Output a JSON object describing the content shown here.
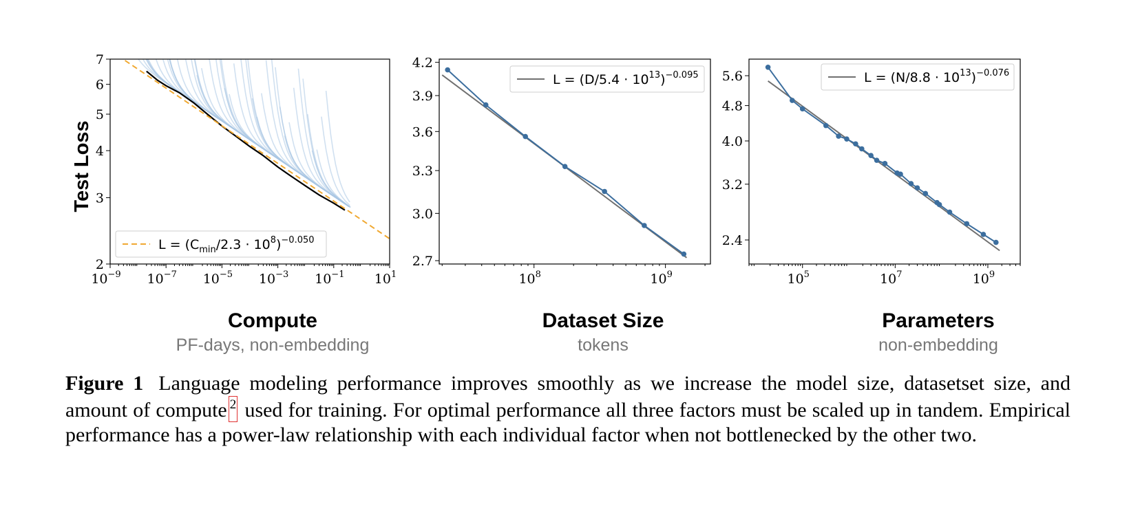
{
  "chart_data": [
    {
      "type": "line",
      "ylabel": "Test Loss",
      "xlabel": "Compute",
      "xsublabel": "PF-days, non-embedding",
      "xscale": "log",
      "yscale": "log",
      "xlim": [
        1e-09,
        10
      ],
      "ylim": [
        2,
        7
      ],
      "x_ticks": [
        {
          "base": "10",
          "exp": "−9",
          "value": 1e-09
        },
        {
          "base": "10",
          "exp": "−7",
          "value": 1e-07
        },
        {
          "base": "10",
          "exp": "−5",
          "value": 1e-05
        },
        {
          "base": "10",
          "exp": "−3",
          "value": 0.001
        },
        {
          "base": "10",
          "exp": "−1",
          "value": 0.1
        },
        {
          "base": "10",
          "exp": "1",
          "value": 10
        }
      ],
      "y_ticks": [
        2,
        3,
        4,
        5,
        6,
        7
      ],
      "y_tick_labels": [
        "2",
        "3",
        "4",
        "5",
        "6",
        "7"
      ],
      "legend": {
        "prefix": "L = (C",
        "subscript": "min",
        "middle": "/2.3 · 10",
        "exp1": "8",
        "close": ")",
        "exp2": "−0.050",
        "placement": "lower-left"
      },
      "fit": {
        "coef": 230000000.0,
        "exponent": -0.05,
        "color": "#f0a830"
      },
      "frontier_color": "#000000",
      "curves_color": "#a9c6e3",
      "frontier": [
        [
          2e-08,
          6.5
        ],
        [
          5e-08,
          6.15
        ],
        [
          1e-07,
          5.95
        ],
        [
          3e-07,
          5.7
        ],
        [
          1e-06,
          5.35
        ],
        [
          3e-06,
          5.0
        ],
        [
          1e-05,
          4.65
        ],
        [
          3e-05,
          4.38
        ],
        [
          0.0001,
          4.1
        ],
        [
          0.0003,
          3.88
        ],
        [
          0.001,
          3.62
        ],
        [
          0.003,
          3.42
        ],
        [
          0.01,
          3.22
        ],
        [
          0.03,
          3.05
        ],
        [
          0.1,
          2.9
        ],
        [
          0.25,
          2.78
        ]
      ]
    },
    {
      "type": "line",
      "xlabel": "Dataset Size",
      "xsublabel": "tokens",
      "xscale": "log",
      "yscale": "log",
      "xlim": [
        19000000.0,
        2200000000.0
      ],
      "ylim": [
        2.68,
        4.23
      ],
      "x_ticks": [
        {
          "base": "10",
          "exp": "8",
          "value": 100000000.0
        },
        {
          "base": "10",
          "exp": "9",
          "value": 1000000000.0
        }
      ],
      "y_ticks": [
        2.7,
        3.0,
        3.3,
        3.6,
        3.9,
        4.2
      ],
      "y_tick_labels": [
        "2.7",
        "3.0",
        "3.3",
        "3.6",
        "3.9",
        "4.2"
      ],
      "legend": {
        "prefix": "L = (D/5.4 · 10",
        "exp1": "13",
        "close": ")",
        "exp2": "−0.095",
        "placement": "upper-right"
      },
      "fit": {
        "coef": 54000000000000.0,
        "exponent": -0.095,
        "color": "#707070"
      },
      "points": [
        [
          22000000.0,
          4.13
        ],
        [
          43000000.0,
          3.82
        ],
        [
          86000000.0,
          3.56
        ],
        [
          172000000.0,
          3.33
        ],
        [
          344000000.0,
          3.15
        ],
        [
          690000000.0,
          2.92
        ],
        [
          1380000000.0,
          2.74
        ]
      ],
      "series_color": "#3c6e9e"
    },
    {
      "type": "line",
      "xlabel": "Parameters",
      "xsublabel": "non-embedding",
      "xscale": "log",
      "yscale": "log",
      "xlim": [
        7000.0,
        5000000000.0
      ],
      "ylim": [
        2.12,
        6.1
      ],
      "x_ticks": [
        {
          "base": "10",
          "exp": "5",
          "value": 100000.0
        },
        {
          "base": "10",
          "exp": "7",
          "value": 10000000.0
        },
        {
          "base": "10",
          "exp": "9",
          "value": 1000000000.0
        }
      ],
      "y_ticks": [
        2.4,
        3.2,
        4.0,
        4.8,
        5.6
      ],
      "y_tick_labels": [
        "2.4",
        "3.2",
        "4.0",
        "4.8",
        "5.6"
      ],
      "legend": {
        "prefix": "L = (N/8.8 · 10",
        "exp1": "13",
        "close": ")",
        "exp2": "−0.076",
        "placement": "upper-right"
      },
      "fit": {
        "coef": 88000000000000.0,
        "exponent": -0.076,
        "color": "#707070"
      },
      "points": [
        [
          18000.0,
          5.85
        ],
        [
          60000.0,
          4.93
        ],
        [
          100000.0,
          4.72
        ],
        [
          320000.0,
          4.33
        ],
        [
          600000.0,
          4.1
        ],
        [
          900000.0,
          4.04
        ],
        [
          1400000.0,
          3.94
        ],
        [
          1900000.0,
          3.84
        ],
        [
          3000000.0,
          3.71
        ],
        [
          4000000.0,
          3.62
        ],
        [
          6000000.0,
          3.56
        ],
        [
          11000000.0,
          3.39
        ],
        [
          13000000.0,
          3.37
        ],
        [
          22000000.0,
          3.21
        ],
        [
          30000000.0,
          3.14
        ],
        [
          45000000.0,
          3.05
        ],
        [
          80000000.0,
          2.91
        ],
        [
          90000000.0,
          2.88
        ],
        [
          150000000.0,
          2.77
        ],
        [
          350000000.0,
          2.61
        ],
        [
          800000000.0,
          2.47
        ],
        [
          1500000000.0,
          2.37
        ]
      ],
      "series_color": "#3c6e9e"
    }
  ],
  "caption": {
    "label": "Figure 1",
    "text_before": "Language modeling performance improves smoothly as we increase the model size, datasetset size, and amount of compute",
    "footnote": "2",
    "text_after": "used for training. For optimal performance all three factors must be scaled up in tandem. Empirical performance has a power-law relationship with each individual factor when not bottlenecked by the other two."
  }
}
